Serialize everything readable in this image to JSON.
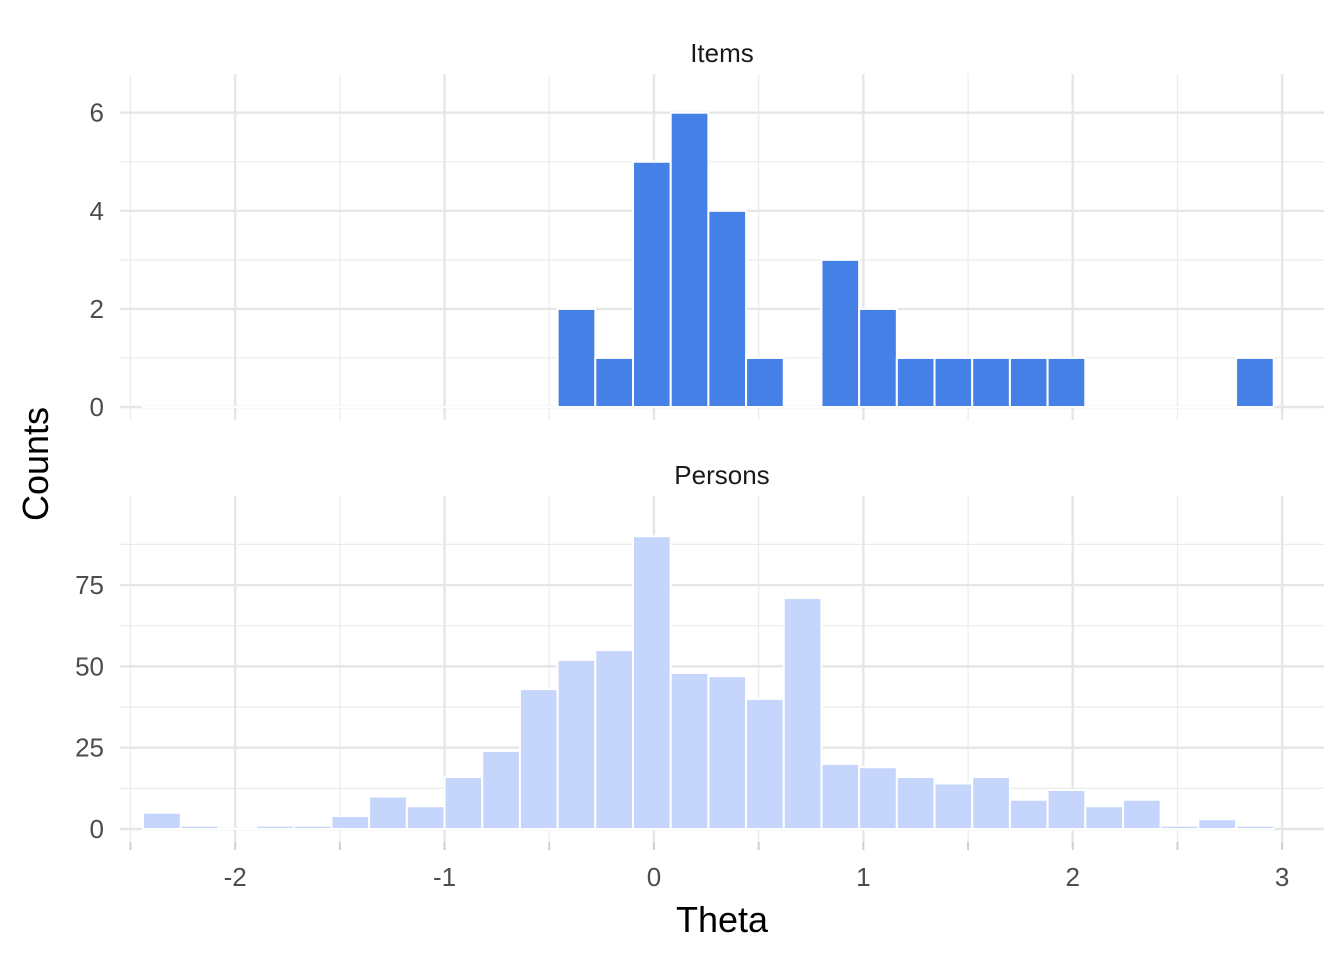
{
  "chart_data": {
    "type": "bar",
    "xlabel": "Theta",
    "ylabel": "Counts",
    "xlim": [
      -2.55,
      3.2
    ],
    "x_ticks": [
      -2,
      -1,
      0,
      1,
      2,
      3
    ],
    "x_tick_labels": [
      "-2",
      "-1",
      "0",
      "1",
      "2",
      "3"
    ],
    "bin_width": 0.18,
    "bin_starts": [
      -2.44,
      -2.26,
      -2.08,
      -1.9,
      -1.72,
      -1.54,
      -1.36,
      -1.18,
      -1.0,
      -0.82,
      -0.64,
      -0.46,
      -0.28,
      -0.1,
      0.08,
      0.26,
      0.44,
      0.62,
      0.8,
      0.98,
      1.16,
      1.34,
      1.52,
      1.7,
      1.88,
      2.06,
      2.24,
      2.42,
      2.6,
      2.78
    ],
    "grid": true,
    "facets": [
      {
        "title": "Items",
        "color": "#4580E6",
        "ylim": [
          0,
          6.3
        ],
        "y_ticks": [
          0,
          2,
          4,
          6
        ],
        "y_tick_labels": [
          "0",
          "2",
          "4",
          "6"
        ],
        "values": [
          0,
          0,
          0,
          0,
          0,
          0,
          0,
          0,
          0,
          0,
          0,
          2,
          1,
          5,
          6,
          4,
          1,
          0,
          3,
          2,
          1,
          1,
          1,
          1,
          1,
          0,
          0,
          0,
          0,
          1
        ]
      },
      {
        "title": "Persons",
        "color": "#C6D5FB",
        "ylim": [
          0,
          95
        ],
        "y_ticks": [
          0,
          25,
          50,
          75
        ],
        "y_tick_labels": [
          "0",
          "25",
          "50",
          "75"
        ],
        "values": [
          5,
          1,
          0,
          1,
          1,
          4,
          10,
          7,
          16,
          24,
          43,
          52,
          55,
          90,
          48,
          47,
          40,
          71,
          20,
          19,
          16,
          14,
          16,
          9,
          12,
          7,
          9,
          1,
          3,
          1
        ]
      }
    ]
  }
}
